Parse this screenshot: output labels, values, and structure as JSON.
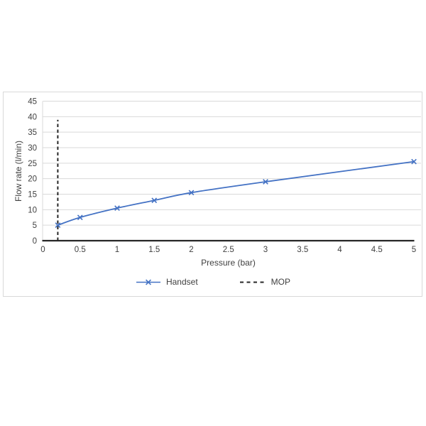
{
  "chart_data": {
    "type": "line",
    "title": "",
    "xlabel": "Pressure (bar)",
    "ylabel": "Flow rate (l/min)",
    "xlim": [
      0,
      5
    ],
    "ylim": [
      0,
      45
    ],
    "xticks": [
      0,
      0.5,
      1,
      1.5,
      2,
      2.5,
      3,
      3.5,
      4,
      4.5,
      5
    ],
    "yticks": [
      0,
      5,
      10,
      15,
      20,
      25,
      30,
      35,
      40,
      45
    ],
    "grid": "horizontal-only",
    "legend_position": "bottom-center",
    "series": [
      {
        "name": "Handset",
        "type": "smooth-line",
        "marker": "x",
        "color": "#4472c4",
        "x": [
          0.2,
          0.5,
          1,
          1.5,
          2,
          3,
          5
        ],
        "y": [
          5,
          7.5,
          10.5,
          13,
          15.5,
          19,
          25.5
        ]
      },
      {
        "name": "MOP",
        "type": "vertical-dashed-line",
        "color": "#262626",
        "x": 0.2,
        "y_from": 0,
        "y_to": 39
      }
    ],
    "colors": {
      "gridline": "#d9d9d9",
      "axis": "#262626",
      "text": "#404040",
      "frame": "#d9d9d9",
      "background": "#ffffff"
    }
  }
}
